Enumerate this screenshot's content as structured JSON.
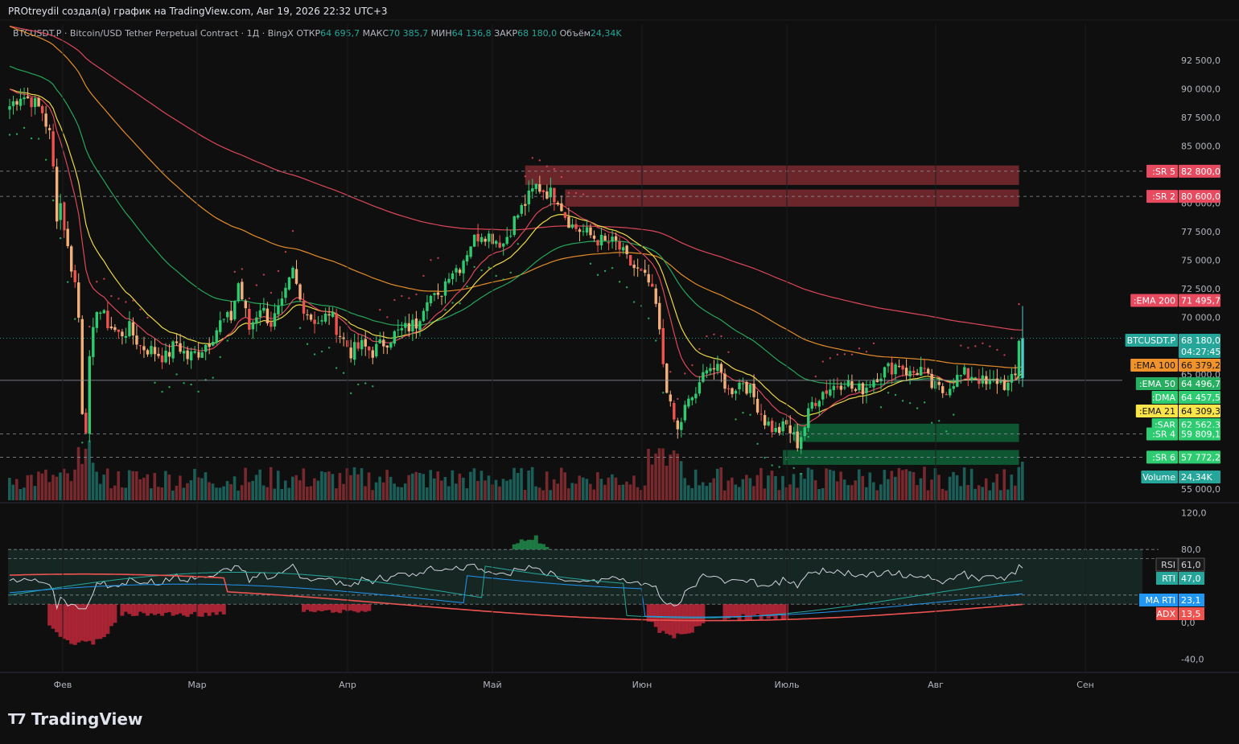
{
  "header": {
    "title": "PROtreydil создал(а) график на TradingView.com, Авг 19, 2026 22:32 UTC+3"
  },
  "symbol_line": {
    "symbol": "BTCUSDT.P · Bitcoin/USD Tether Perpetual Contract · 1Д · BingX",
    "open_label": "ОТКР",
    "open": "64 695,7",
    "high_label": "МАКС",
    "high": "70 385,7",
    "low_label": "МИН",
    "low": "64 136,8",
    "close_label": "ЗАКР",
    "close": "68 180,0",
    "volume_label": "Объём",
    "volume": "24,34K"
  },
  "logo": {
    "text": "TradingView",
    "icon": "tradingview-logo-icon"
  },
  "colors": {
    "background": "#0f0f0f",
    "up": "#26a69a",
    "down": "#ef5350",
    "up_bright": "#2ecc71",
    "down_candle": "#f5b07a",
    "ema200": "#e84a5f",
    "ema100": "#f0932b",
    "ema50": "#27ae60",
    "ema21": "#f9e44a",
    "dma": "#2ecc71",
    "resistance_zone": "#8b2f35",
    "support_zone": "#0f6e3f"
  },
  "chart_data": [
    {
      "type": "candlestick",
      "title": "",
      "price_axis": {
        "labels": [
          "92 500,0",
          "90 000,0",
          "87 500,0",
          "85 000,0",
          "80 000,0",
          "77 500,0",
          "75 000,0",
          "72 500,0",
          "70 000,0",
          "65 000,0",
          "55 000,0"
        ],
        "ylim": [
          54000,
          93700
        ]
      },
      "time_axis": {
        "labels": [
          "Фев",
          "Мар",
          "Апр",
          "Май",
          "Июн",
          "Июль",
          "Авг",
          "Сен"
        ]
      },
      "price_path": [
        [
          0,
          88500
        ],
        [
          3,
          89500
        ],
        [
          6,
          89000
        ],
        [
          9,
          88000
        ],
        [
          11,
          86000
        ],
        [
          12,
          83000
        ],
        [
          13,
          79000
        ],
        [
          14,
          80000
        ],
        [
          16,
          76000
        ],
        [
          18,
          73000
        ],
        [
          19,
          70000
        ],
        [
          20,
          62000
        ],
        [
          21,
          60500
        ],
        [
          22,
          66000
        ],
        [
          24,
          71000
        ],
        [
          27,
          69500
        ],
        [
          30,
          68500
        ],
        [
          33,
          69000
        ],
        [
          36,
          67500
        ],
        [
          40,
          67000
        ],
        [
          43,
          66500
        ],
        [
          46,
          67800
        ],
        [
          49,
          66500
        ],
        [
          52,
          67000
        ],
        [
          55,
          68000
        ],
        [
          58,
          69500
        ],
        [
          61,
          70000
        ],
        [
          63,
          73000
        ],
        [
          66,
          69000
        ],
        [
          69,
          71000
        ],
        [
          72,
          69500
        ],
        [
          75,
          71000
        ],
        [
          78,
          74000
        ],
        [
          80,
          71500
        ],
        [
          83,
          70000
        ],
        [
          86,
          69500
        ],
        [
          88,
          70500
        ],
        [
          91,
          68500
        ],
        [
          94,
          67000
        ],
        [
          97,
          67500
        ],
        [
          100,
          67000
        ],
        [
          103,
          67800
        ],
        [
          106,
          68500
        ],
        [
          109,
          69000
        ],
        [
          112,
          69500
        ],
        [
          115,
          72000
        ],
        [
          118,
          71500
        ],
        [
          121,
          74000
        ],
        [
          124,
          74500
        ],
        [
          127,
          76500
        ],
        [
          130,
          77500
        ],
        [
          133,
          77000
        ],
        [
          136,
          76500
        ],
        [
          139,
          78500
        ],
        [
          142,
          80000
        ],
        [
          145,
          81500
        ],
        [
          148,
          81000
        ],
        [
          151,
          80500
        ],
        [
          153,
          79000
        ],
        [
          155,
          78000
        ],
        [
          158,
          77500
        ],
        [
          161,
          77000
        ],
        [
          164,
          76500
        ],
        [
          167,
          76500
        ],
        [
          170,
          75000
        ],
        [
          173,
          74000
        ],
        [
          176,
          73000
        ],
        [
          178,
          71000
        ],
        [
          180,
          66000
        ],
        [
          182,
          62000
        ],
        [
          184,
          60000
        ],
        [
          186,
          62000
        ],
        [
          188,
          63000
        ],
        [
          190,
          63800
        ],
        [
          192,
          66000
        ],
        [
          194,
          65500
        ],
        [
          196,
          65000
        ],
        [
          198,
          63500
        ],
        [
          200,
          64000
        ],
        [
          202,
          64500
        ],
        [
          205,
          63000
        ],
        [
          208,
          61000
        ],
        [
          211,
          60000
        ],
        [
          214,
          60500
        ],
        [
          217,
          59000
        ],
        [
          219,
          60500
        ],
        [
          221,
          62500
        ],
        [
          224,
          63500
        ],
        [
          227,
          64000
        ],
        [
          230,
          64500
        ],
        [
          233,
          63500
        ],
        [
          236,
          64000
        ],
        [
          239,
          65000
        ],
        [
          242,
          65500
        ],
        [
          245,
          66000
        ],
        [
          248,
          65000
        ],
        [
          251,
          65500
        ],
        [
          254,
          64000
        ],
        [
          257,
          63500
        ],
        [
          260,
          64500
        ],
        [
          263,
          65000
        ],
        [
          266,
          65000
        ],
        [
          269,
          64000
        ],
        [
          272,
          64500
        ],
        [
          275,
          64000
        ],
        [
          277,
          64800
        ],
        [
          278,
          68180
        ]
      ],
      "annotations": [
        {
          "label": ":SR 5",
          "value": "82 800,0",
          "price": 82800,
          "color": "#e84a5f"
        },
        {
          "label": ":SR 2",
          "value": "80 600,0",
          "price": 80600,
          "color": "#e84a5f"
        },
        {
          "label": ":EMA 200",
          "value": "71 495,7",
          "price": 71495.7,
          "color": "#e84a5f"
        },
        {
          "label": "BTCUSDT.P",
          "value": "68 180,0",
          "value2": "04:27:45",
          "price": 68180,
          "color": "#26a69a"
        },
        {
          "label": ":EMA 100",
          "value": "66 379,2",
          "price": 66379.2,
          "color": "#f0932b"
        },
        {
          "label": ":EMA 50",
          "value": "64 496,7",
          "price": 64496.7,
          "color": "#27ae60"
        },
        {
          "label": ":DMA",
          "value": "64 457,5",
          "price": 64457.5,
          "color": "#2ecc71"
        },
        {
          "label": ":EMA 21",
          "value": "64 309,3",
          "price": 64309.3,
          "color": "#f9e44a"
        },
        {
          "label": ":SAR",
          "value": "62 562,3",
          "price": 62562.3,
          "color": "#2ecc71"
        },
        {
          "label": ":SR 4",
          "value": "59 809,1",
          "price": 59809.1,
          "color": "#2ecc71"
        },
        {
          "label": ":SR 6",
          "value": "57 772,2",
          "price": 57772.2,
          "color": "#2ecc71"
        },
        {
          "label": "Volume",
          "value": "24,34K",
          "color": "#26a69a"
        }
      ]
    },
    {
      "type": "line",
      "title": "",
      "axis_labels": [
        "120,0",
        "80,0",
        "0,0",
        "-40,0"
      ],
      "ylim": [
        -45,
        125
      ],
      "series": [
        {
          "name": "RSI",
          "value": "61,0",
          "color": "#d1d4dc"
        },
        {
          "name": "RTI",
          "value": "47,0",
          "color": "#26a69a"
        },
        {
          "name": "MA RTI",
          "value": "23,1",
          "color": "#2196f3"
        },
        {
          "name": "ADX",
          "value": "13,5",
          "color": "#ef5350"
        }
      ]
    }
  ]
}
